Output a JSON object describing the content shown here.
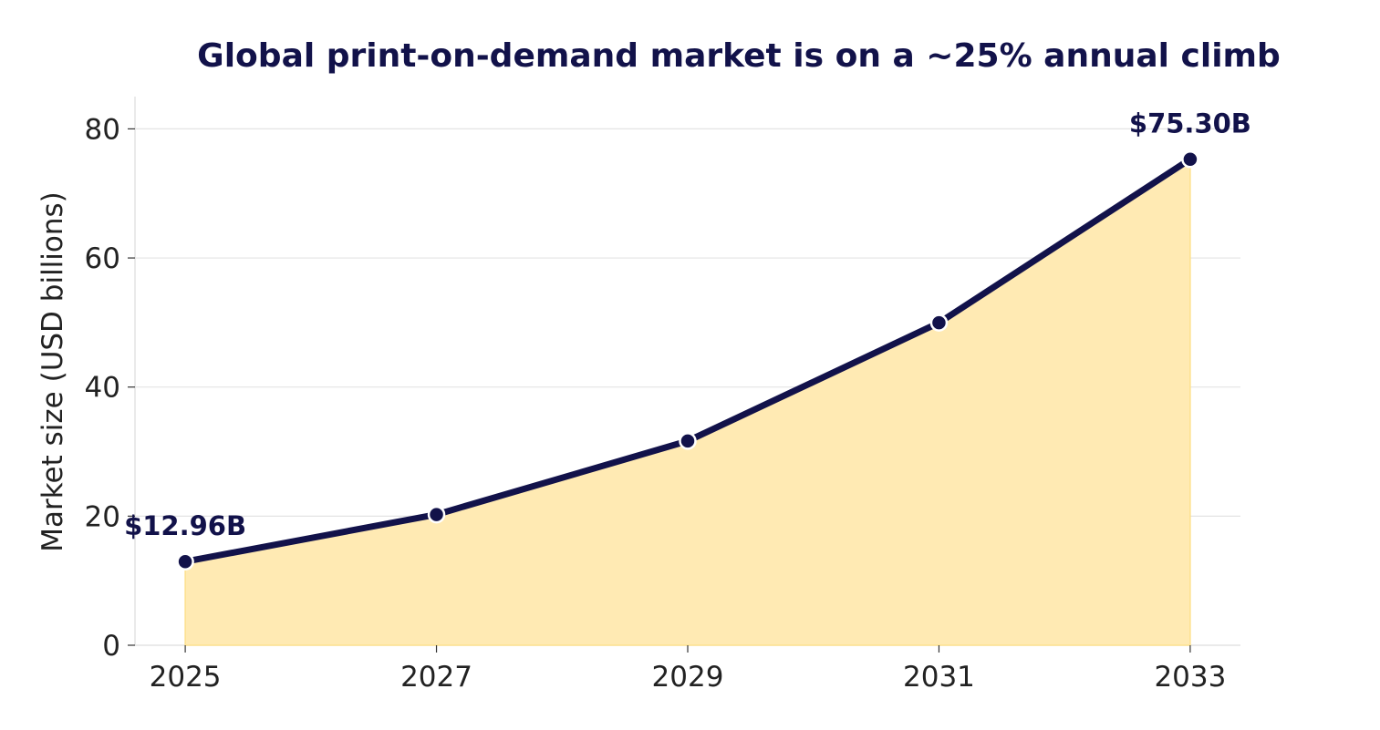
{
  "chart_data": {
    "type": "area",
    "title": "Global print-on-demand market is on a ~25% annual climb",
    "xlabel": "",
    "ylabel": "Market size (USD billions)",
    "x": [
      2025,
      2027,
      2029,
      2031,
      2033
    ],
    "x_tick_labels": [
      "2025",
      "2027",
      "2029",
      "2031",
      "2033"
    ],
    "values": [
      12.96,
      20.25,
      31.64,
      49.96,
      75.3
    ],
    "xlim": [
      2024.6,
      2033.4
    ],
    "ylim": [
      0,
      85
    ],
    "y_ticks": [
      0,
      20,
      40,
      60,
      80
    ],
    "y_tick_labels": [
      "0",
      "20",
      "40",
      "60",
      "80"
    ],
    "grid": "horizontal",
    "annotations": [
      {
        "x": 2025,
        "y": 12.96,
        "text": "$12.96B"
      },
      {
        "x": 2033,
        "y": 75.3,
        "text": "$75.30B"
      }
    ],
    "colors": {
      "line": "#12124a",
      "fill": "#ffeab3",
      "fill_edge": "#fde18f",
      "grid": "#e4e4e4",
      "axis": "#dddddd",
      "text": "#222222",
      "title": "#12124a"
    }
  }
}
